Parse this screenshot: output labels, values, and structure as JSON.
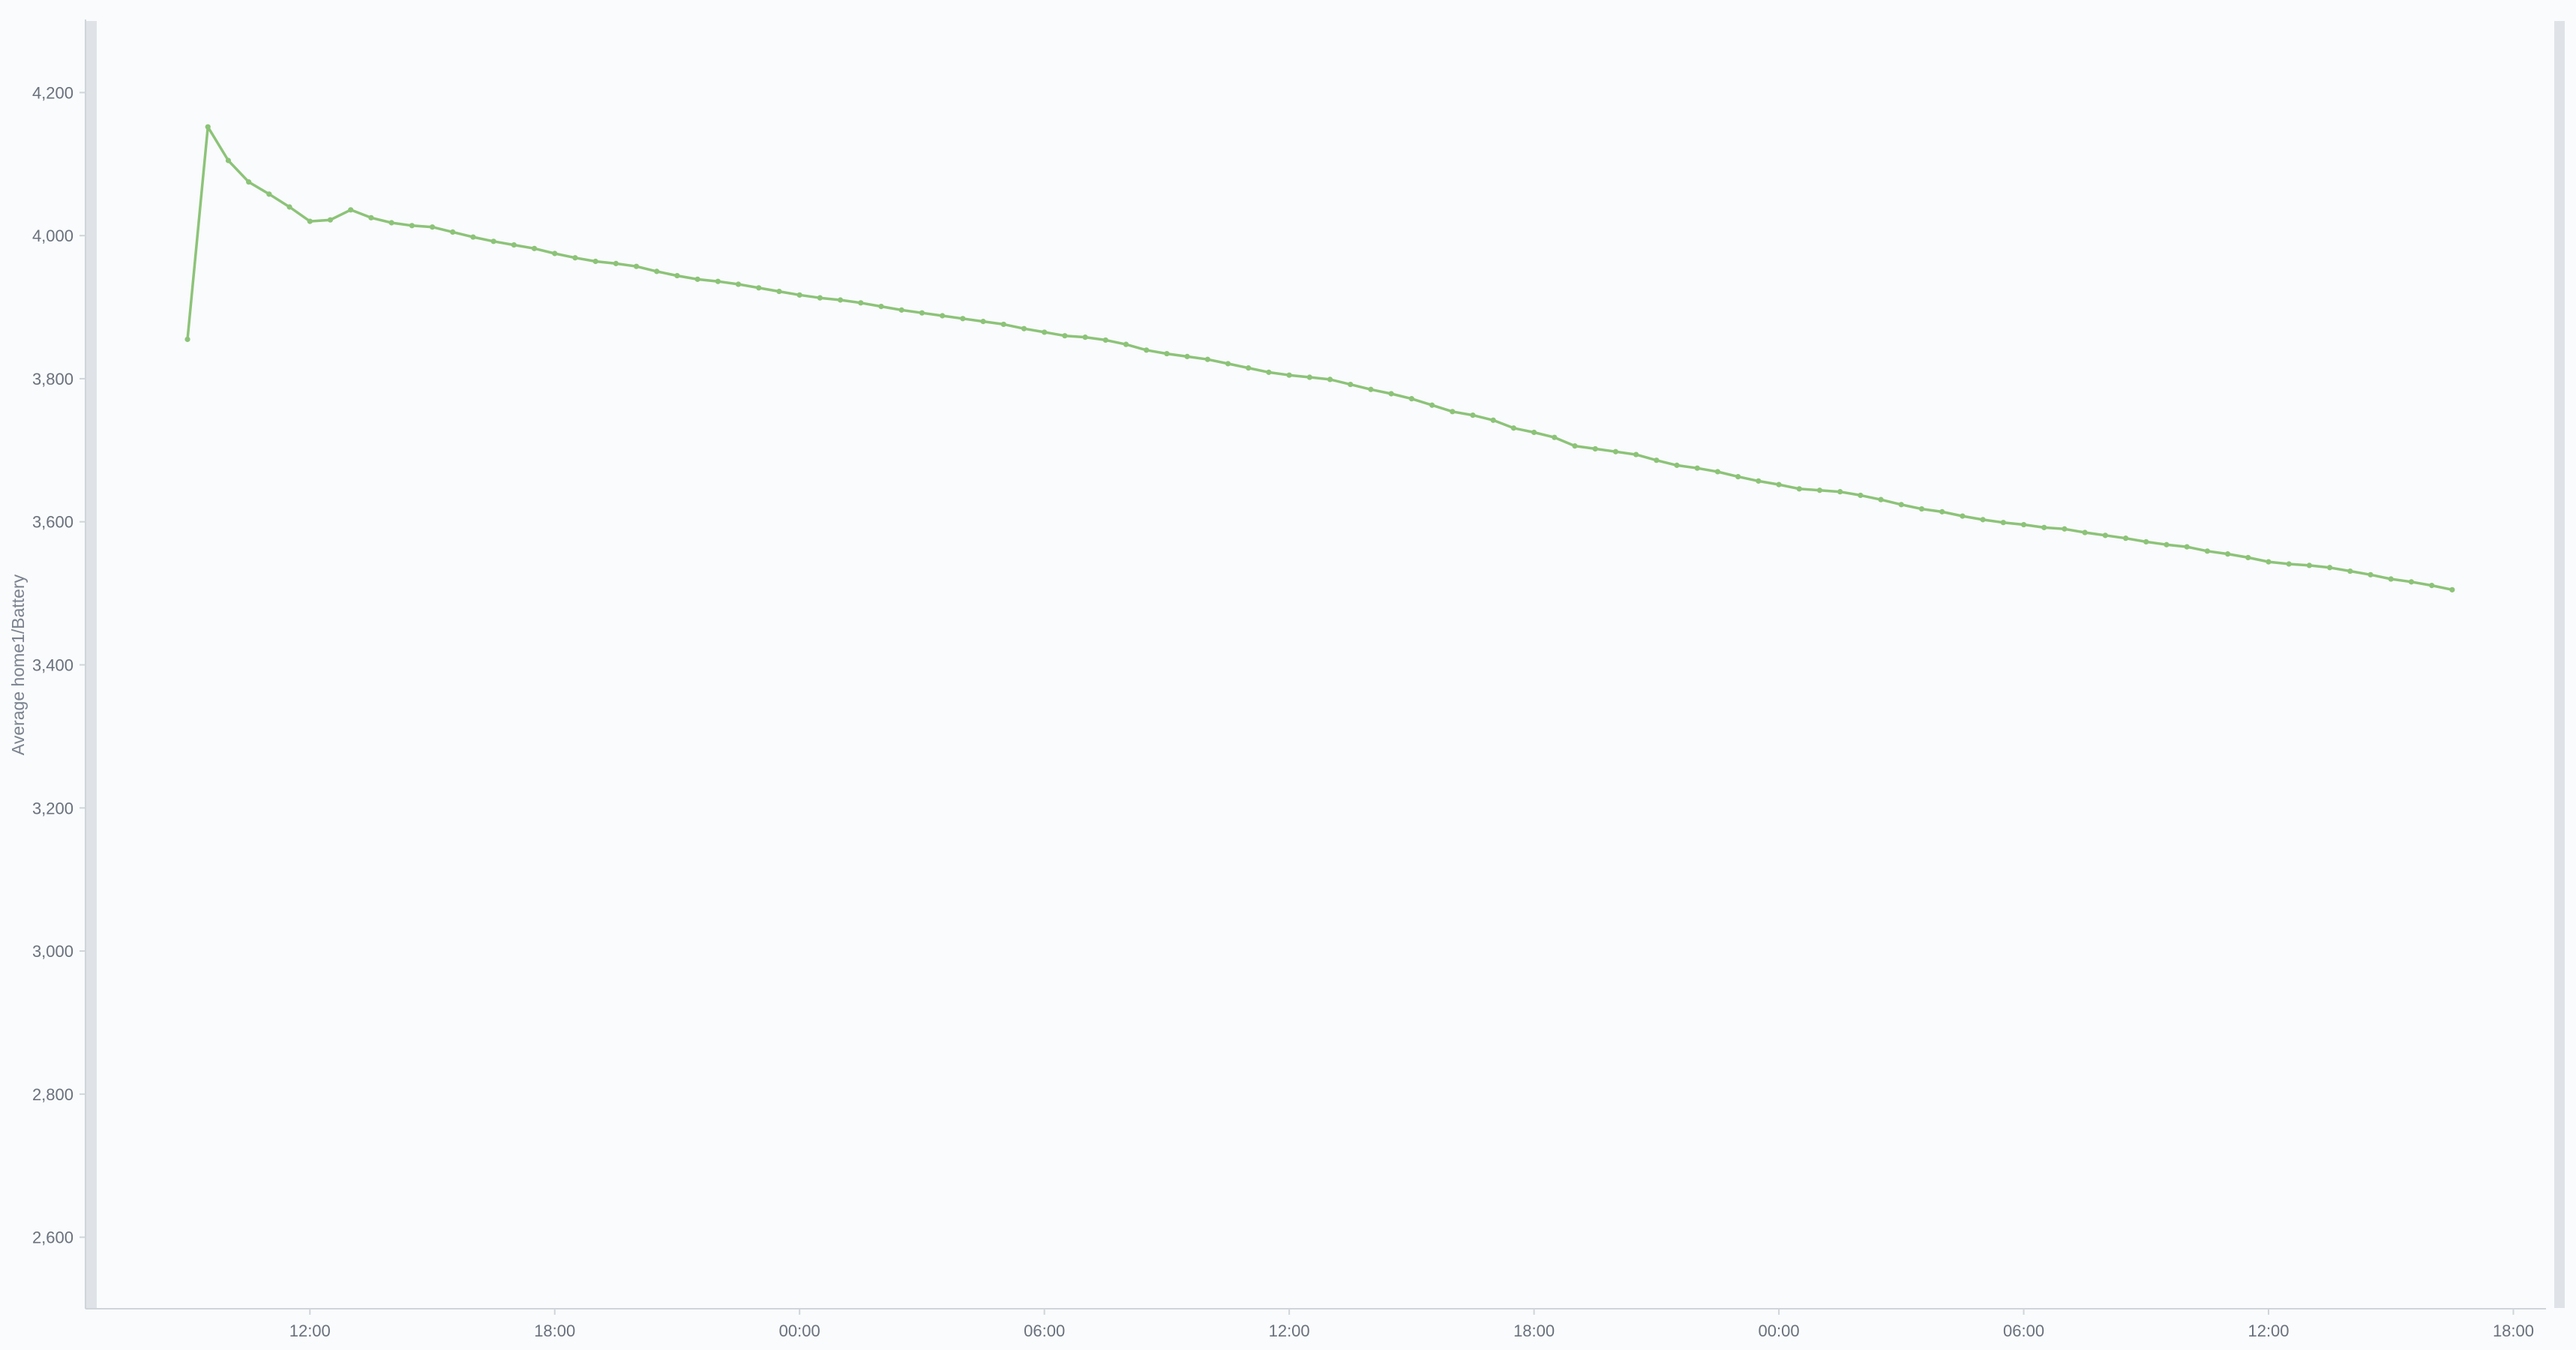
{
  "colors": {
    "background": "#f9fbfc",
    "line": "#8cc378",
    "axis": "#cfd5da",
    "tick_text": "#6a717d",
    "label_text": "#7a828e",
    "scroll_handle": "#dfe3e7"
  },
  "chart_data": {
    "type": "line",
    "title": "",
    "xlabel": "",
    "ylabel": "Average home1/Battery",
    "x_axis_unit": "hours",
    "xlim": [
      6.5,
      66.8
    ],
    "ylim": [
      2500,
      4300
    ],
    "x_ticks": [
      {
        "x": 12,
        "label": "12:00"
      },
      {
        "x": 18,
        "label": "18:00"
      },
      {
        "x": 24,
        "label": "00:00"
      },
      {
        "x": 30,
        "label": "06:00"
      },
      {
        "x": 36,
        "label": "12:00"
      },
      {
        "x": 42,
        "label": "18:00"
      },
      {
        "x": 48,
        "label": "00:00"
      },
      {
        "x": 54,
        "label": "06:00"
      },
      {
        "x": 60,
        "label": "12:00"
      },
      {
        "x": 66,
        "label": "18:00"
      }
    ],
    "y_ticks": [
      {
        "y": 2600,
        "label": "2,600"
      },
      {
        "y": 2800,
        "label": "2,800"
      },
      {
        "y": 3000,
        "label": "3,000"
      },
      {
        "y": 3200,
        "label": "3,200"
      },
      {
        "y": 3400,
        "label": "3,400"
      },
      {
        "y": 3600,
        "label": "3,600"
      },
      {
        "y": 3800,
        "label": "3,800"
      },
      {
        "y": 4000,
        "label": "4,000"
      },
      {
        "y": 4200,
        "label": "4,200"
      }
    ],
    "grid": false,
    "legend": "none",
    "series": [
      {
        "values": [
          [
            9.0,
            3855
          ],
          [
            9.5,
            4152
          ],
          [
            10.0,
            4105
          ],
          [
            10.5,
            4075
          ],
          [
            11.0,
            4058
          ],
          [
            11.5,
            4040
          ],
          [
            12.0,
            4020
          ],
          [
            12.5,
            4022
          ],
          [
            13.0,
            4036
          ],
          [
            13.5,
            4025
          ],
          [
            14.0,
            4018
          ],
          [
            14.5,
            4014
          ],
          [
            15.0,
            4012
          ],
          [
            15.5,
            4005
          ],
          [
            16.0,
            3998
          ],
          [
            16.5,
            3992
          ],
          [
            17.0,
            3987
          ],
          [
            17.5,
            3982
          ],
          [
            18.0,
            3975
          ],
          [
            18.5,
            3969
          ],
          [
            19.0,
            3964
          ],
          [
            19.5,
            3961
          ],
          [
            20.0,
            3957
          ],
          [
            20.5,
            3950
          ],
          [
            21.0,
            3944
          ],
          [
            21.5,
            3939
          ],
          [
            22.0,
            3936
          ],
          [
            22.5,
            3932
          ],
          [
            23.0,
            3927
          ],
          [
            23.5,
            3922
          ],
          [
            24.0,
            3917
          ],
          [
            24.5,
            3913
          ],
          [
            25.0,
            3910
          ],
          [
            25.5,
            3906
          ],
          [
            26.0,
            3901
          ],
          [
            26.5,
            3896
          ],
          [
            27.0,
            3892
          ],
          [
            27.5,
            3888
          ],
          [
            28.0,
            3884
          ],
          [
            28.5,
            3880
          ],
          [
            29.0,
            3876
          ],
          [
            29.5,
            3870
          ],
          [
            30.0,
            3865
          ],
          [
            30.5,
            3860
          ],
          [
            31.0,
            3858
          ],
          [
            31.5,
            3854
          ],
          [
            32.0,
            3848
          ],
          [
            32.5,
            3840
          ],
          [
            33.0,
            3835
          ],
          [
            33.5,
            3831
          ],
          [
            34.0,
            3827
          ],
          [
            34.5,
            3821
          ],
          [
            35.0,
            3815
          ],
          [
            35.5,
            3809
          ],
          [
            36.0,
            3805
          ],
          [
            36.5,
            3802
          ],
          [
            37.0,
            3799
          ],
          [
            37.5,
            3792
          ],
          [
            38.0,
            3785
          ],
          [
            38.5,
            3779
          ],
          [
            39.0,
            3772
          ],
          [
            39.5,
            3763
          ],
          [
            40.0,
            3754
          ],
          [
            40.5,
            3749
          ],
          [
            41.0,
            3742
          ],
          [
            41.5,
            3731
          ],
          [
            42.0,
            3725
          ],
          [
            42.5,
            3718
          ],
          [
            43.0,
            3706
          ],
          [
            43.5,
            3702
          ],
          [
            44.0,
            3698
          ],
          [
            44.5,
            3694
          ],
          [
            45.0,
            3686
          ],
          [
            45.5,
            3679
          ],
          [
            46.0,
            3675
          ],
          [
            46.5,
            3670
          ],
          [
            47.0,
            3663
          ],
          [
            47.5,
            3657
          ],
          [
            48.0,
            3652
          ],
          [
            48.5,
            3646
          ],
          [
            49.0,
            3644
          ],
          [
            49.5,
            3642
          ],
          [
            50.0,
            3637
          ],
          [
            50.5,
            3631
          ],
          [
            51.0,
            3624
          ],
          [
            51.5,
            3618
          ],
          [
            52.0,
            3614
          ],
          [
            52.5,
            3608
          ],
          [
            53.0,
            3603
          ],
          [
            53.5,
            3599
          ],
          [
            54.0,
            3596
          ],
          [
            54.5,
            3592
          ],
          [
            55.0,
            3590
          ],
          [
            55.5,
            3585
          ],
          [
            56.0,
            3581
          ],
          [
            56.5,
            3577
          ],
          [
            57.0,
            3572
          ],
          [
            57.5,
            3568
          ],
          [
            58.0,
            3565
          ],
          [
            58.5,
            3559
          ],
          [
            59.0,
            3555
          ],
          [
            59.5,
            3550
          ],
          [
            60.0,
            3544
          ],
          [
            60.5,
            3541
          ],
          [
            61.0,
            3539
          ],
          [
            61.5,
            3536
          ],
          [
            62.0,
            3531
          ],
          [
            62.5,
            3526
          ],
          [
            63.0,
            3520
          ],
          [
            63.5,
            3516
          ],
          [
            64.0,
            3511
          ],
          [
            64.5,
            3505
          ]
        ]
      }
    ]
  }
}
